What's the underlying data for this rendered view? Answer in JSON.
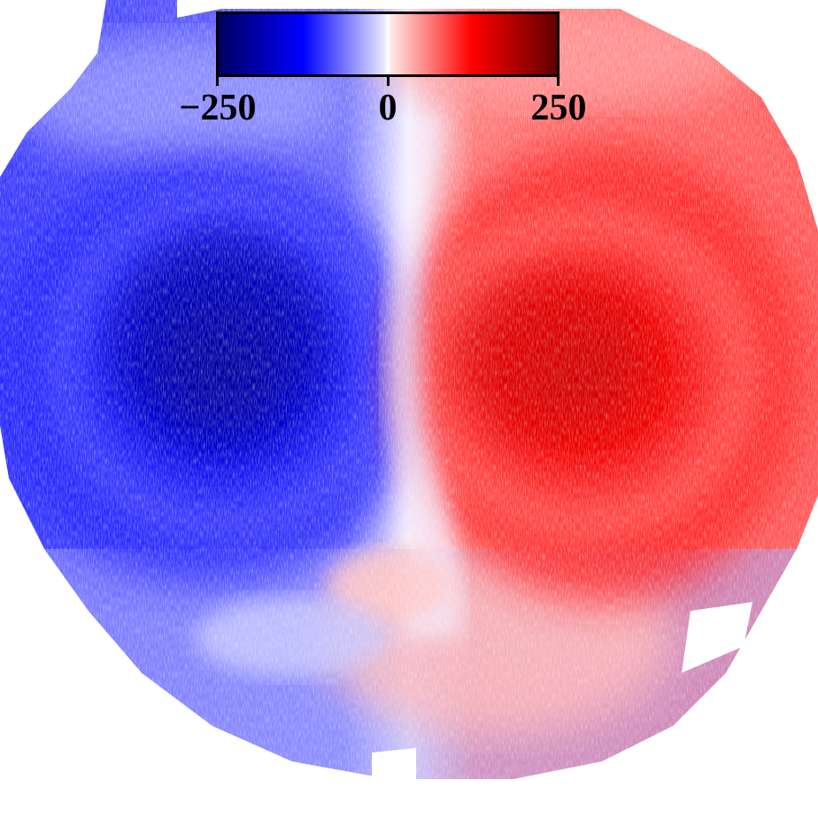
{
  "colorbar": {
    "min_label": "−250",
    "mid_label": "0",
    "max_label": "250",
    "colormap": [
      "#000060",
      "#0000ff",
      "#ffffff",
      "#ff0000",
      "#600000"
    ]
  },
  "velocity_field": {
    "approaching_color": "#0000ff",
    "receding_color": "#ff0000",
    "noise_color": "#f2f2ff",
    "background": "#ffffff"
  }
}
